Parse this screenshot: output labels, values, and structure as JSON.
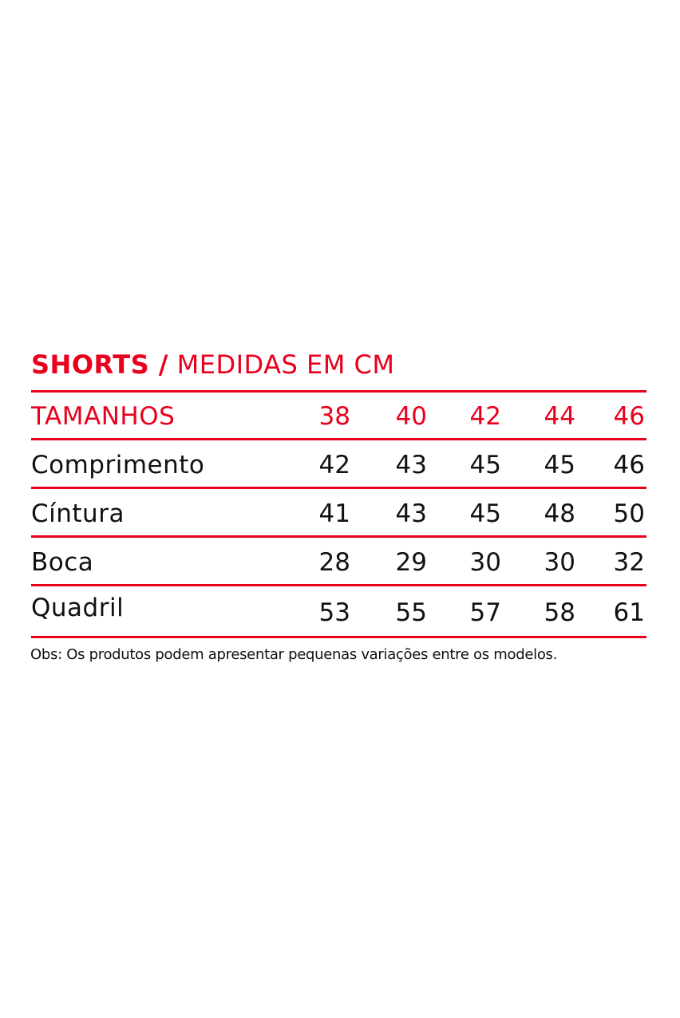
{
  "title": {
    "bold": "SHORTS /",
    "light": "MEDIDAS EM CM"
  },
  "colors": {
    "accent": "#e8001c",
    "text": "#111111"
  },
  "table": {
    "header": {
      "label": "TAMANHOS",
      "sizes": [
        "38",
        "40",
        "42",
        "44",
        "46"
      ]
    },
    "rows": [
      {
        "label": "Comprimento",
        "values": [
          "42",
          "43",
          "45",
          "45",
          "46"
        ]
      },
      {
        "label": "Cíntura",
        "values": [
          "41",
          "43",
          "45",
          "48",
          "50"
        ]
      },
      {
        "label": "Boca",
        "values": [
          "28",
          "29",
          "30",
          "30",
          "32"
        ]
      },
      {
        "label": "Quadril",
        "values": [
          "53",
          "55",
          "57",
          "58",
          "61"
        ]
      }
    ]
  },
  "note": "Obs: Os produtos podem apresentar pequenas variações entre os modelos."
}
